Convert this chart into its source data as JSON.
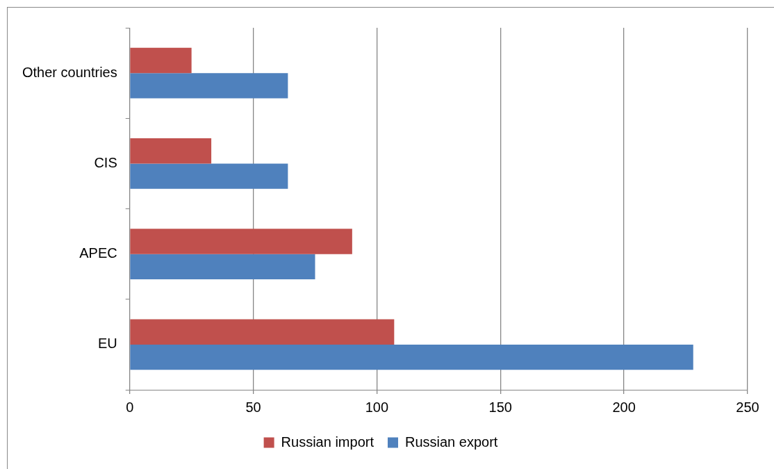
{
  "chart_data": {
    "type": "bar",
    "orientation": "horizontal",
    "categories": [
      "Other countries",
      "CIS",
      "APEC",
      "EU"
    ],
    "series": [
      {
        "name": "Russian import",
        "color": "#c0504d",
        "values": [
          25,
          33,
          90,
          107
        ]
      },
      {
        "name": "Russian export",
        "color": "#4f81bd",
        "values": [
          64,
          64,
          75,
          228
        ]
      }
    ],
    "xlim": [
      0,
      250
    ],
    "xticks": [
      0,
      50,
      100,
      150,
      200,
      250
    ],
    "grid": "x",
    "legend": "bottom"
  }
}
